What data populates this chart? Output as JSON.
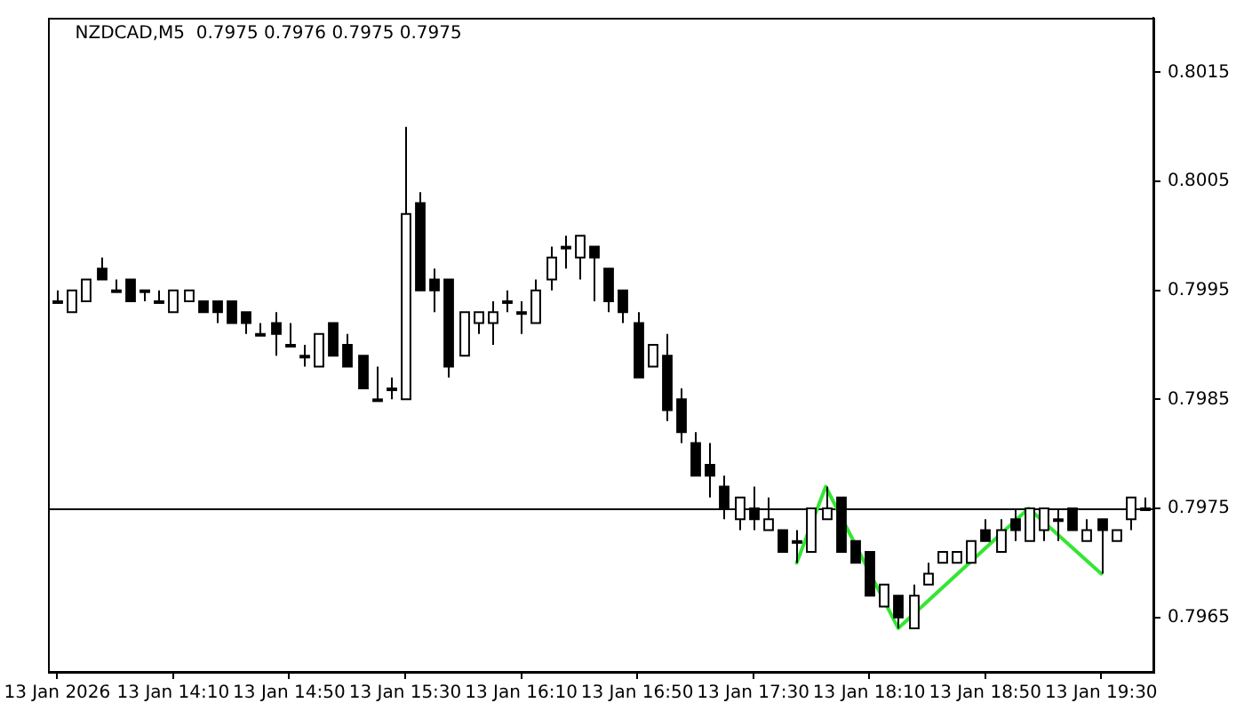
{
  "chart_data": {
    "type": "candlestick",
    "title": "NZDCAD,M5  0.7975 0.7976 0.7975 0.7975",
    "x": [
      "2026-01-13T13:30",
      "2026-01-13T13:35",
      "2026-01-13T13:40",
      "2026-01-13T13:45",
      "2026-01-13T13:50",
      "2026-01-13T13:55",
      "2026-01-13T14:00",
      "2026-01-13T14:05",
      "2026-01-13T14:10",
      "2026-01-13T14:15",
      "2026-01-13T14:20",
      "2026-01-13T14:25",
      "2026-01-13T14:30",
      "2026-01-13T14:35",
      "2026-01-13T14:40",
      "2026-01-13T14:45",
      "2026-01-13T14:50",
      "2026-01-13T14:55",
      "2026-01-13T15:00",
      "2026-01-13T15:05",
      "2026-01-13T15:10",
      "2026-01-13T15:15",
      "2026-01-13T15:20",
      "2026-01-13T15:25",
      "2026-01-13T15:30",
      "2026-01-13T15:35",
      "2026-01-13T15:40",
      "2026-01-13T15:45",
      "2026-01-13T15:50",
      "2026-01-13T15:55",
      "2026-01-13T16:00",
      "2026-01-13T16:05",
      "2026-01-13T16:10",
      "2026-01-13T16:15",
      "2026-01-13T16:20",
      "2026-01-13T16:25",
      "2026-01-13T16:30",
      "2026-01-13T16:35",
      "2026-01-13T16:40",
      "2026-01-13T16:45",
      "2026-01-13T16:50",
      "2026-01-13T16:55",
      "2026-01-13T17:00",
      "2026-01-13T17:05",
      "2026-01-13T17:10",
      "2026-01-13T17:15",
      "2026-01-13T17:20",
      "2026-01-13T17:25",
      "2026-01-13T17:30",
      "2026-01-13T17:35",
      "2026-01-13T17:40",
      "2026-01-13T17:45",
      "2026-01-13T17:50",
      "2026-01-13T17:55",
      "2026-01-13T18:00",
      "2026-01-13T18:05",
      "2026-01-13T18:10",
      "2026-01-13T18:15",
      "2026-01-13T18:20",
      "2026-01-13T18:25",
      "2026-01-13T18:30",
      "2026-01-13T18:35",
      "2026-01-13T18:40",
      "2026-01-13T18:45",
      "2026-01-13T18:50",
      "2026-01-13T18:55",
      "2026-01-13T19:00",
      "2026-01-13T19:05",
      "2026-01-13T19:10",
      "2026-01-13T19:15",
      "2026-01-13T19:20",
      "2026-01-13T19:25",
      "2026-01-13T19:30",
      "2026-01-13T19:35",
      "2026-01-13T19:40",
      "2026-01-13T19:45"
    ],
    "ohlc": [
      [
        0.7994,
        0.7995,
        0.7994,
        0.7994
      ],
      [
        0.7993,
        0.7995,
        0.7993,
        0.7995
      ],
      [
        0.7994,
        0.7996,
        0.7994,
        0.7996
      ],
      [
        0.7997,
        0.7998,
        0.7996,
        0.7996
      ],
      [
        0.7995,
        0.7996,
        0.7995,
        0.7995
      ],
      [
        0.7996,
        0.7996,
        0.7994,
        0.7994
      ],
      [
        0.7995,
        0.7995,
        0.7994,
        0.7995
      ],
      [
        0.7994,
        0.7995,
        0.7994,
        0.7994
      ],
      [
        0.7993,
        0.7995,
        0.7993,
        0.7995
      ],
      [
        0.7994,
        0.7995,
        0.7994,
        0.7995
      ],
      [
        0.7994,
        0.7994,
        0.7993,
        0.7993
      ],
      [
        0.7994,
        0.7994,
        0.7992,
        0.7993
      ],
      [
        0.7994,
        0.7994,
        0.7992,
        0.7992
      ],
      [
        0.7993,
        0.7993,
        0.7991,
        0.7992
      ],
      [
        0.7991,
        0.7992,
        0.7991,
        0.7991
      ],
      [
        0.7992,
        0.7993,
        0.7989,
        0.7991
      ],
      [
        0.799,
        0.7992,
        0.799,
        0.799
      ],
      [
        0.7989,
        0.799,
        0.7988,
        0.7989
      ],
      [
        0.7988,
        0.7991,
        0.7988,
        0.7991
      ],
      [
        0.7992,
        0.7992,
        0.7989,
        0.7989
      ],
      [
        0.799,
        0.7991,
        0.7988,
        0.7988
      ],
      [
        0.7989,
        0.7989,
        0.7986,
        0.7986
      ],
      [
        0.7985,
        0.7988,
        0.7985,
        0.7985
      ],
      [
        0.7986,
        0.7987,
        0.7985,
        0.7986
      ],
      [
        0.7985,
        0.801,
        0.7985,
        0.8002
      ],
      [
        0.8003,
        0.8004,
        0.7995,
        0.7995
      ],
      [
        0.7996,
        0.7997,
        0.7993,
        0.7995
      ],
      [
        0.7996,
        0.7996,
        0.7987,
        0.7988
      ],
      [
        0.7989,
        0.7993,
        0.7989,
        0.7993
      ],
      [
        0.7992,
        0.7993,
        0.7991,
        0.7993
      ],
      [
        0.7992,
        0.7994,
        0.799,
        0.7993
      ],
      [
        0.7994,
        0.7995,
        0.7993,
        0.7994
      ],
      [
        0.7993,
        0.7994,
        0.7991,
        0.7993
      ],
      [
        0.7992,
        0.7996,
        0.7992,
        0.7995
      ],
      [
        0.7996,
        0.7999,
        0.7995,
        0.7998
      ],
      [
        0.7999,
        0.8,
        0.7997,
        0.7999
      ],
      [
        0.7998,
        0.8,
        0.7996,
        0.8
      ],
      [
        0.7999,
        0.7999,
        0.7994,
        0.7998
      ],
      [
        0.7997,
        0.7997,
        0.7993,
        0.7994
      ],
      [
        0.7995,
        0.7995,
        0.7992,
        0.7993
      ],
      [
        0.7992,
        0.7993,
        0.7987,
        0.7987
      ],
      [
        0.7988,
        0.799,
        0.7988,
        0.799
      ],
      [
        0.7989,
        0.7991,
        0.7983,
        0.7984
      ],
      [
        0.7985,
        0.7986,
        0.7981,
        0.7982
      ],
      [
        0.7981,
        0.7982,
        0.7978,
        0.7978
      ],
      [
        0.7979,
        0.7981,
        0.7976,
        0.7978
      ],
      [
        0.7977,
        0.7978,
        0.7974,
        0.7975
      ],
      [
        0.7974,
        0.7976,
        0.7973,
        0.7976
      ],
      [
        0.7975,
        0.7977,
        0.7973,
        0.7974
      ],
      [
        0.7973,
        0.7976,
        0.7973,
        0.7974
      ],
      [
        0.7973,
        0.7973,
        0.7971,
        0.7971
      ],
      [
        0.7972,
        0.7973,
        0.797,
        0.7972
      ],
      [
        0.7971,
        0.7975,
        0.7971,
        0.7975
      ],
      [
        0.7974,
        0.7977,
        0.7974,
        0.7975
      ],
      [
        0.7976,
        0.7976,
        0.7971,
        0.7971
      ],
      [
        0.7972,
        0.7972,
        0.797,
        0.797
      ],
      [
        0.7971,
        0.7971,
        0.7967,
        0.7967
      ],
      [
        0.7966,
        0.7968,
        0.7966,
        0.7968
      ],
      [
        0.7967,
        0.7967,
        0.7964,
        0.7965
      ],
      [
        0.7964,
        0.7968,
        0.7964,
        0.7967
      ],
      [
        0.7968,
        0.797,
        0.7968,
        0.7969
      ],
      [
        0.797,
        0.7971,
        0.797,
        0.7971
      ],
      [
        0.797,
        0.7971,
        0.797,
        0.7971
      ],
      [
        0.797,
        0.7972,
        0.797,
        0.7972
      ],
      [
        0.7973,
        0.7974,
        0.7972,
        0.7972
      ],
      [
        0.7971,
        0.7974,
        0.7971,
        0.7973
      ],
      [
        0.7974,
        0.7975,
        0.7972,
        0.7973
      ],
      [
        0.7972,
        0.7975,
        0.7972,
        0.7975
      ],
      [
        0.7973,
        0.7975,
        0.7972,
        0.7975
      ],
      [
        0.7974,
        0.7975,
        0.7972,
        0.7974
      ],
      [
        0.7975,
        0.7975,
        0.7973,
        0.7973
      ],
      [
        0.7972,
        0.7974,
        0.7972,
        0.7973
      ],
      [
        0.7974,
        0.7974,
        0.7969,
        0.7973
      ],
      [
        0.7972,
        0.7973,
        0.7972,
        0.7973
      ],
      [
        0.7974,
        0.7976,
        0.7973,
        0.7976
      ],
      [
        0.7975,
        0.7976,
        0.7975,
        0.7975
      ]
    ],
    "series": [
      {
        "type": "line",
        "color": "#33e633",
        "x": [
          "2026-01-13T17:45",
          "2026-01-13T17:55",
          "2026-01-13T18:20",
          "2026-01-13T19:05",
          "2026-01-13T19:30"
        ],
        "values": [
          0.797,
          0.7977,
          0.7964,
          0.7975,
          0.7969
        ]
      }
    ],
    "marker": "none",
    "line_style": "solid",
    "xlim": [
      "2026-01-13T13:27",
      "2026-01-13T19:48"
    ],
    "xticks": [
      {
        "value": "2026-01-13T13:30",
        "label": "13 Jan 2026"
      },
      {
        "value": "2026-01-13T14:10",
        "label": "13 Jan 14:10"
      },
      {
        "value": "2026-01-13T14:50",
        "label": "13 Jan 14:50"
      },
      {
        "value": "2026-01-13T15:30",
        "label": "13 Jan 15:30"
      },
      {
        "value": "2026-01-13T16:10",
        "label": "13 Jan 16:10"
      },
      {
        "value": "2026-01-13T16:50",
        "label": "13 Jan 16:50"
      },
      {
        "value": "2026-01-13T17:30",
        "label": "13 Jan 17:30"
      },
      {
        "value": "2026-01-13T18:10",
        "label": "13 Jan 18:10"
      },
      {
        "value": "2026-01-13T18:50",
        "label": "13 Jan 18:50"
      },
      {
        "value": "2026-01-13T19:30",
        "label": "13 Jan 19:30"
      }
    ],
    "ylim": [
      0.796,
      0.802
    ],
    "yticks": [
      0.7965,
      0.7975,
      0.7985,
      0.7995,
      0.8005,
      0.8015
    ],
    "ref_lines": [
      {
        "axis": "y",
        "value": 0.7975,
        "color": "#000000"
      }
    ],
    "grid": false,
    "legend": false
  }
}
